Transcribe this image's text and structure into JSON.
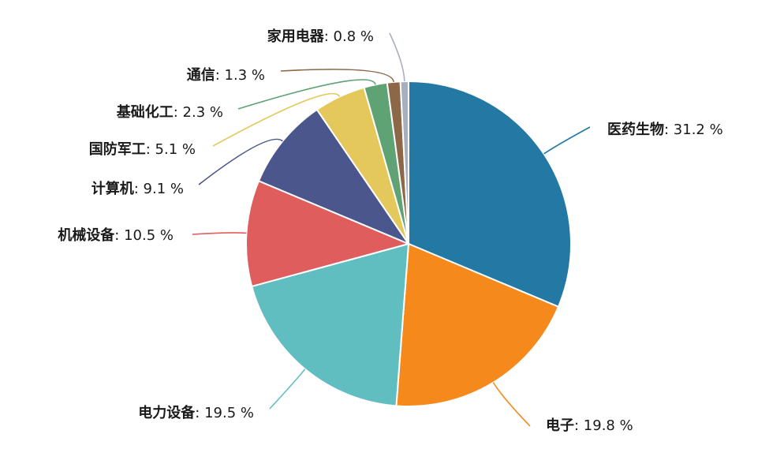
{
  "chart_data": {
    "type": "pie",
    "title": "",
    "categories": [
      "医药生物",
      "电子",
      "电力设备",
      "机械设备",
      "计算机",
      "国防军工",
      "基础化工",
      "通信",
      "家用电器"
    ],
    "values": [
      31.2,
      19.8,
      19.5,
      10.5,
      9.1,
      5.1,
      2.3,
      1.3,
      0.8
    ],
    "labels": [
      "医药生物",
      "电子",
      "电力设备",
      "机械设备",
      "计算机",
      "国防军工",
      "基础化工",
      "通信",
      "家用电器"
    ],
    "value_labels": [
      "31.2 %",
      "19.8 %",
      "19.5 %",
      "10.5 %",
      "9.1 %",
      "5.1 %",
      "2.3 %",
      "1.3 %",
      "0.8 %"
    ],
    "separator": ":",
    "colors": [
      "#2378a4",
      "#f5891b",
      "#60bec0",
      "#e05d5d",
      "#4b578c",
      "#e4c85c",
      "#5fa273",
      "#8c6848",
      "#a7aec0",
      "#9b6fb0"
    ],
    "start_angle_deg": 0,
    "direction": "clockwise",
    "legend": "none"
  }
}
